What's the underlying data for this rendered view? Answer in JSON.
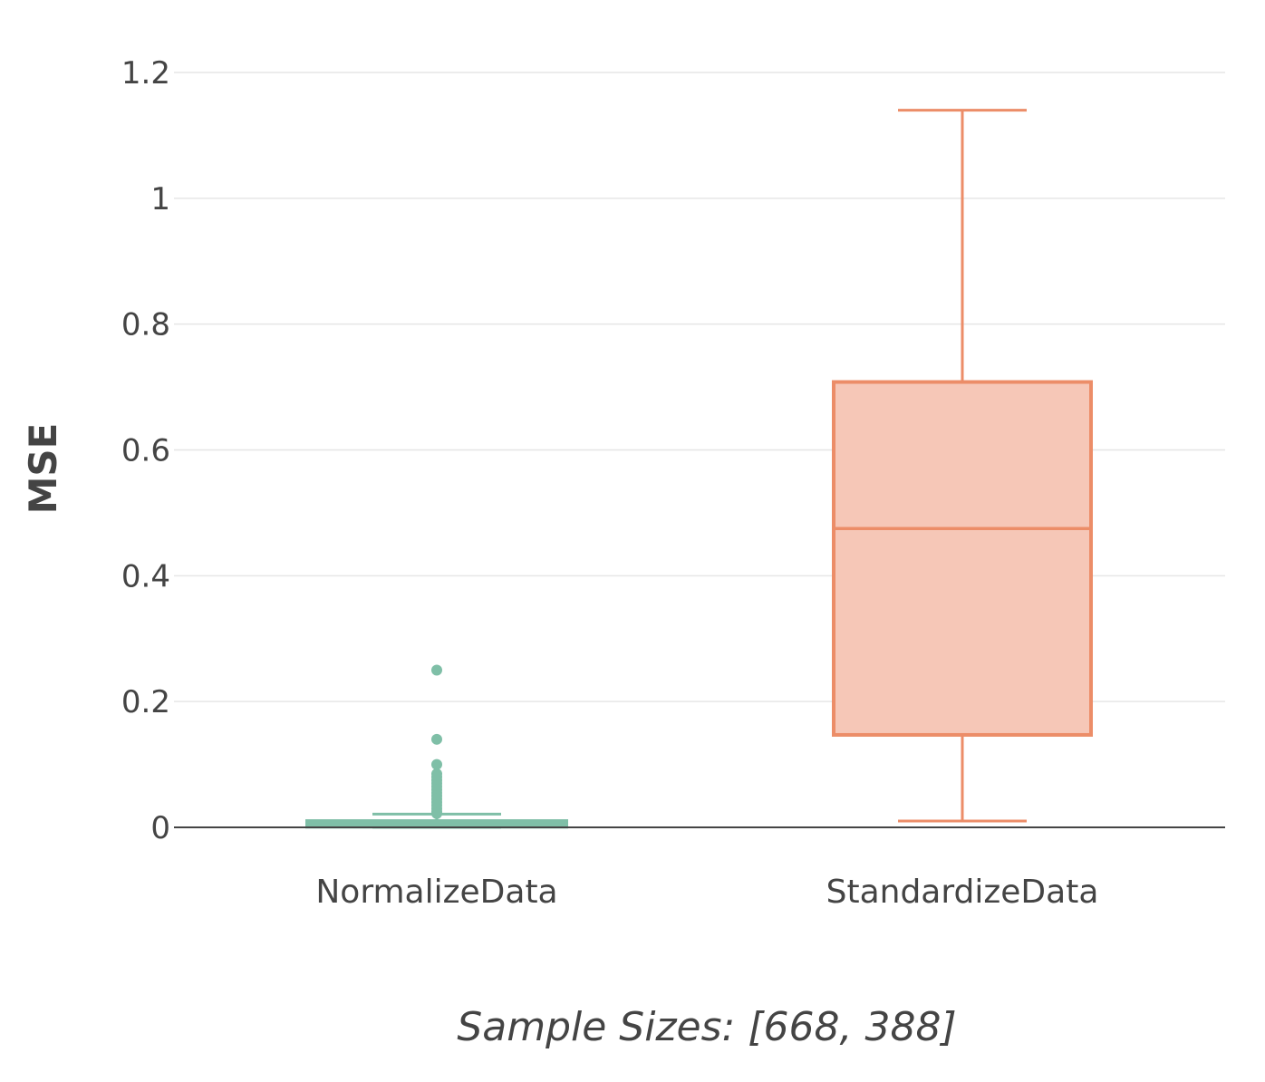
{
  "chart_data": {
    "type": "box",
    "title": "",
    "xlabel": "Sample Sizes: [668, 388]",
    "ylabel": "MSE",
    "ylim": [
      0,
      1.2
    ],
    "yticks": [
      0,
      0.2,
      0.4,
      0.6,
      0.8,
      1,
      1.2
    ],
    "ytick_labels": [
      "0",
      "0.2",
      "0.4",
      "0.6",
      "0.8",
      "1",
      "1.2"
    ],
    "grid": true,
    "legend": "none",
    "categories": [
      "NormalizeData",
      "StandardizeData"
    ],
    "series": [
      {
        "category": "NormalizeData",
        "color": "#7fbfa7",
        "fill": "#7fbfa7",
        "min": 0.0,
        "q1": 0.001,
        "median": 0.004,
        "q3": 0.01,
        "max": 0.021,
        "outliers": [
          0.25,
          0.14,
          0.1,
          0.085,
          0.08,
          0.075,
          0.07,
          0.065,
          0.06,
          0.055,
          0.05,
          0.045,
          0.04,
          0.035,
          0.03,
          0.025,
          0.022
        ]
      },
      {
        "category": "StandardizeData",
        "color": "#ec8d68",
        "fill": "#f6c7b7",
        "min": 0.01,
        "q1": 0.147,
        "median": 0.475,
        "q3": 0.708,
        "max": 1.14,
        "outliers": []
      }
    ]
  }
}
